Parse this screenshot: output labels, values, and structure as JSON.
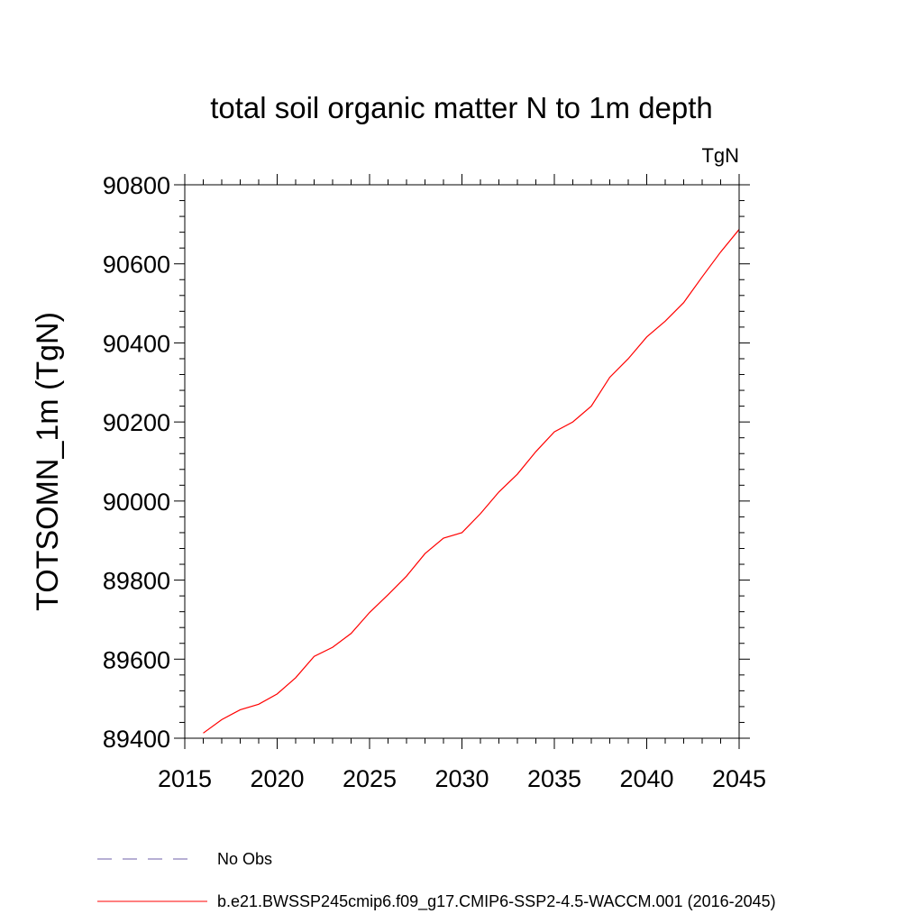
{
  "chart_data": {
    "type": "line",
    "title": "total soil organic matter N to 1m depth",
    "units_label": "TgN",
    "xlabel": "",
    "ylabel": "TOTSOMN_1m  (TgN)",
    "xlim": [
      2015,
      2045
    ],
    "ylim": [
      89400,
      90800
    ],
    "x_ticks": [
      2015,
      2020,
      2025,
      2030,
      2035,
      2040,
      2045
    ],
    "y_ticks": [
      89400,
      89600,
      89800,
      90000,
      90200,
      90400,
      90600,
      90800
    ],
    "grid": false,
    "legend_position": "bottom",
    "series": [
      {
        "name": "b.e21.BWSSP245cmip6.f09_g17.CMIP6-SSP2-4.5-WACCM.001 (2016-2045)",
        "color": "#ff0000",
        "style": "solid",
        "x": [
          2016,
          2017,
          2018,
          2019,
          2020,
          2021,
          2022,
          2023,
          2024,
          2025,
          2026,
          2027,
          2028,
          2029,
          2030,
          2031,
          2032,
          2033,
          2034,
          2035,
          2036,
          2037,
          2038,
          2039,
          2040,
          2041,
          2042,
          2043,
          2044,
          2045
        ],
        "values": [
          89413,
          89447,
          89472,
          89486,
          89512,
          89553,
          89607,
          89630,
          89665,
          89718,
          89763,
          89810,
          89867,
          89906,
          89920,
          89968,
          90023,
          90068,
          90125,
          90175,
          90200,
          90240,
          90313,
          90360,
          90415,
          90455,
          90502,
          90567,
          90630,
          90687
        ]
      },
      {
        "name": "No Obs",
        "color": "#6f5fa8",
        "style": "dashed",
        "x": [],
        "values": []
      }
    ]
  }
}
